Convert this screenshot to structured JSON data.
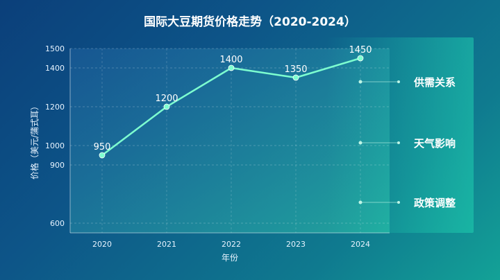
{
  "chart_data": {
    "type": "line",
    "title": "国际大豆期货价格走势（2020-2024）",
    "xlabel": "年份",
    "ylabel": "价格（美元/蒲式耳）",
    "x": [
      "2020",
      "2021",
      "2022",
      "2023",
      "2024"
    ],
    "series": [
      {
        "values": [
          950,
          1200,
          1400,
          1350,
          1450
        ]
      }
    ],
    "data_labels": [
      "950",
      "1200",
      "1400",
      "1350",
      "1450"
    ],
    "ylim": [
      550,
      1500
    ],
    "yticks": [
      600,
      900,
      1000,
      1200,
      1400,
      1500
    ],
    "grid": true,
    "line_color": "#7dffd0",
    "factors": [
      {
        "label": "供需关系"
      },
      {
        "label": "天气影响"
      },
      {
        "label": "政策调整"
      }
    ]
  }
}
